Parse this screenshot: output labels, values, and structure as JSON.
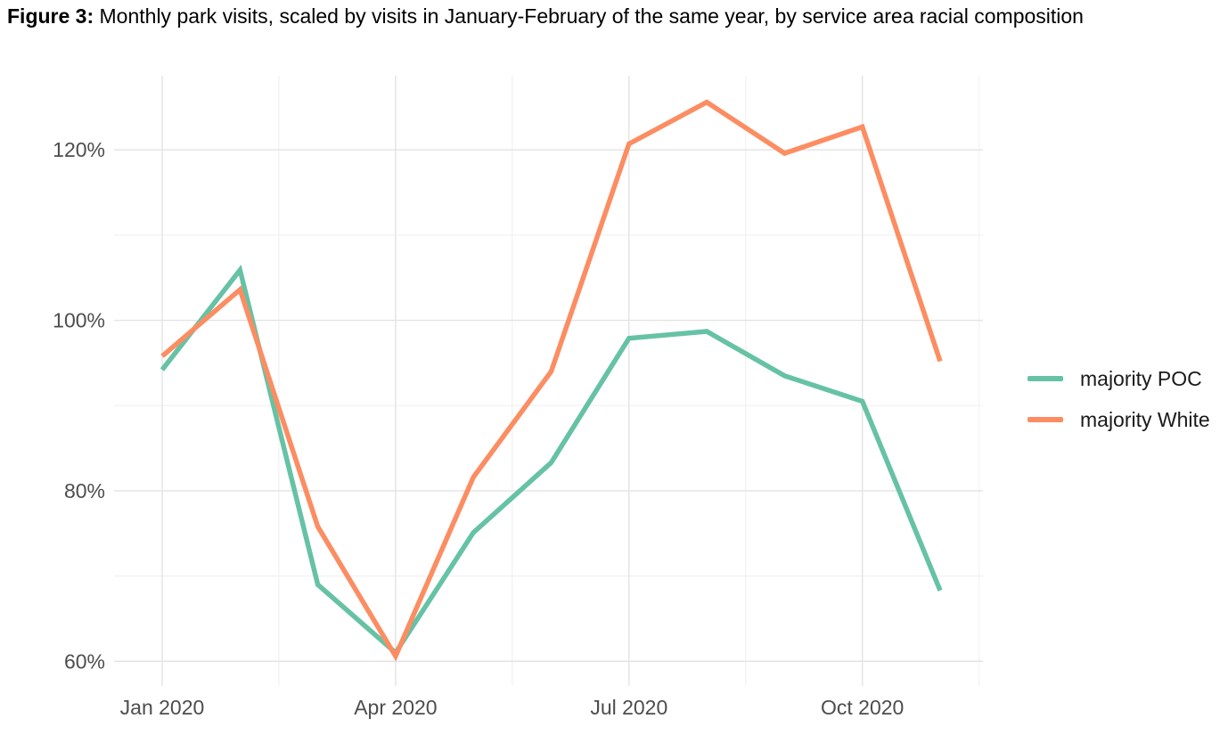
{
  "figure": {
    "label": "Figure 3:",
    "title": " Monthly park visits, scaled by visits in January-February of the same year, by service area racial composition"
  },
  "chart_data": {
    "type": "line",
    "x": [
      "Jan 2020",
      "Feb 2020",
      "Mar 2020",
      "Apr 2020",
      "May 2020",
      "Jun 2020",
      "Jul 2020",
      "Aug 2020",
      "Sep 2020",
      "Oct 2020",
      "Nov 2020"
    ],
    "series": [
      {
        "name": "majority POC",
        "color": "#66C2A5",
        "values": [
          94.2,
          105.9,
          69.0,
          61.0,
          75.1,
          83.3,
          97.9,
          98.7,
          93.5,
          90.5,
          68.3
        ]
      },
      {
        "name": "majority White",
        "color": "#FC8D62",
        "values": [
          95.8,
          103.6,
          75.8,
          60.6,
          81.6,
          94.0,
          120.7,
          125.6,
          119.6,
          122.7,
          95.2
        ]
      }
    ],
    "title": "",
    "xlabel": "",
    "ylabel": "",
    "unit": "%",
    "ylim": [
      57.1,
      128.7
    ],
    "y_ticks": [
      {
        "value": 60,
        "label": "60%"
      },
      {
        "value": 80,
        "label": "80%"
      },
      {
        "value": 100,
        "label": "100%"
      },
      {
        "value": 120,
        "label": "120%"
      }
    ],
    "y_minor_breaks": [
      70,
      90,
      110
    ],
    "x_ticks": [
      {
        "index": 0,
        "label": "Jan 2020"
      },
      {
        "index": 3,
        "label": "Apr 2020"
      },
      {
        "index": 6,
        "label": "Jul 2020"
      },
      {
        "index": 9,
        "label": "Oct 2020"
      }
    ],
    "x_minor_breaks": [
      1.5,
      4.5,
      7.5,
      10.5
    ],
    "grid": "major+minor",
    "legend_position": "right",
    "colors": {
      "grid_major": "#e3e3e3",
      "grid_minor": "#f0f0f0",
      "axis_text": "#4d4d4d",
      "legend_text": "#1a1a1a",
      "background": "#ffffff"
    }
  }
}
